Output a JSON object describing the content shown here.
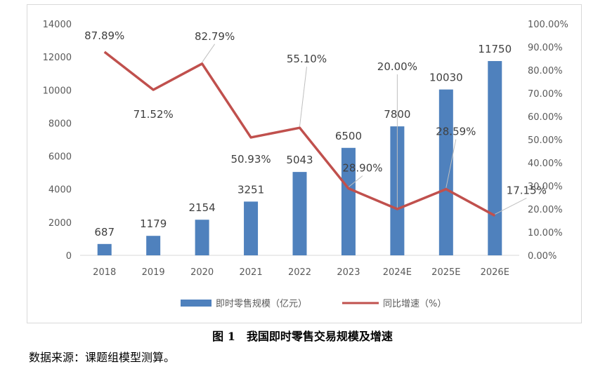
{
  "chart_data": {
    "type": "bar+line",
    "categories": [
      "2018",
      "2019",
      "2020",
      "2021",
      "2022",
      "2023",
      "2024E",
      "2025E",
      "2026E"
    ],
    "series": [
      {
        "name": "即时零售规模（亿元）",
        "type": "bar",
        "axis": "left",
        "values": [
          687,
          1179,
          2154,
          3251,
          5043,
          6500,
          7800,
          10030,
          11750
        ],
        "labels": [
          "687",
          "1179",
          "2154",
          "3251",
          "5043",
          "6500",
          "7800",
          "10030",
          "11750"
        ],
        "color": "#4f81bd"
      },
      {
        "name": "同比增速（%）",
        "type": "line",
        "axis": "right",
        "values": [
          87.89,
          71.52,
          82.79,
          50.93,
          55.1,
          28.9,
          20.0,
          28.59,
          17.15
        ],
        "labels": [
          "87.89%",
          "71.52%",
          "82.79%",
          "50.93%",
          "55.10%",
          "28.90%",
          "20.00%",
          "28.59%",
          "17.15%"
        ],
        "color": "#c0504d"
      }
    ],
    "y_left": {
      "min": 0,
      "max": 14000,
      "ticks": [
        "0",
        "2000",
        "4000",
        "6000",
        "8000",
        "10000",
        "12000",
        "14000"
      ]
    },
    "y_right": {
      "min": 0,
      "max": 100,
      "ticks": [
        "0.00%",
        "10.00%",
        "20.00%",
        "30.00%",
        "40.00%",
        "50.00%",
        "60.00%",
        "70.00%",
        "80.00%",
        "90.00%",
        "100.00%"
      ]
    },
    "grid": false,
    "legend": "bottom"
  },
  "caption": "图 1　我国即时零售交易规模及增速",
  "source_note": "数据来源：课题组模型测算。"
}
